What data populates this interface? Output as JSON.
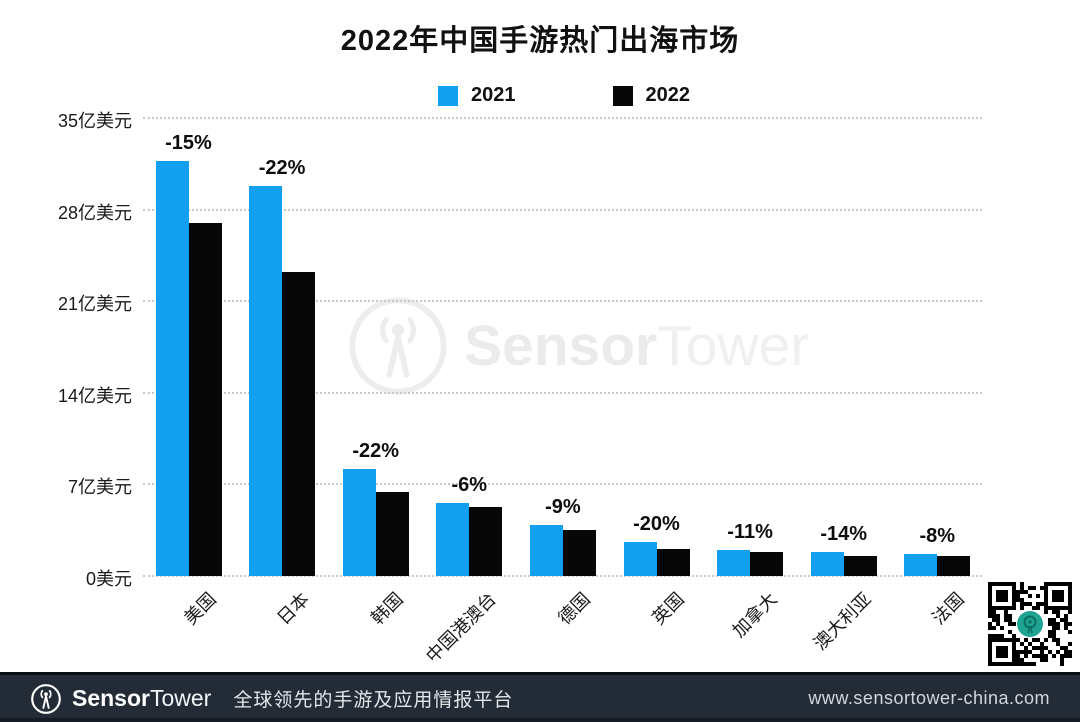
{
  "title": "2022年中国手游热门出海市场",
  "legend": {
    "items": [
      {
        "label": "2021",
        "color": "#14a0f0"
      },
      {
        "label": "2022",
        "color": "#070707"
      }
    ]
  },
  "chart_data": {
    "type": "bar",
    "title": "2022年中国手游热门出海市场",
    "categories": [
      "美国",
      "日本",
      "韩国",
      "中国港澳台",
      "德国",
      "英国",
      "加拿大",
      "澳大利亚",
      "法国"
    ],
    "series": [
      {
        "name": "2021",
        "color": "#14a0f0",
        "values": [
          31.7,
          29.8,
          8.2,
          5.6,
          3.9,
          2.6,
          2.0,
          1.8,
          1.7
        ]
      },
      {
        "name": "2022",
        "color": "#070707",
        "values": [
          27.0,
          23.2,
          6.4,
          5.25,
          3.55,
          2.1,
          1.8,
          1.55,
          1.55
        ]
      }
    ],
    "bar_group_labels": [
      "-15%",
      "-22%",
      "-22%",
      "-6%",
      "-9%",
      "-20%",
      "-11%",
      "-14%",
      "-8%"
    ],
    "unit": "亿美元",
    "yticks": [
      {
        "value": 0,
        "label": "0美元"
      },
      {
        "value": 7,
        "label": "7亿美元"
      },
      {
        "value": 14,
        "label": "14亿美元"
      },
      {
        "value": 21,
        "label": "21亿美元"
      },
      {
        "value": 28,
        "label": "28亿美元"
      },
      {
        "value": 35,
        "label": "35亿美元"
      }
    ],
    "ylim": [
      0,
      35
    ],
    "grid": "horizontal-dotted",
    "legend_position": "top-center",
    "xlabel": "",
    "ylabel": ""
  },
  "watermark": {
    "brand_bold": "Sensor",
    "brand_light": "Tower"
  },
  "footer": {
    "brand_bold": "Sensor",
    "brand_light": "Tower",
    "tagline": "全球领先的手游及应用情报平台",
    "url": "www.sensortower-china.com"
  }
}
